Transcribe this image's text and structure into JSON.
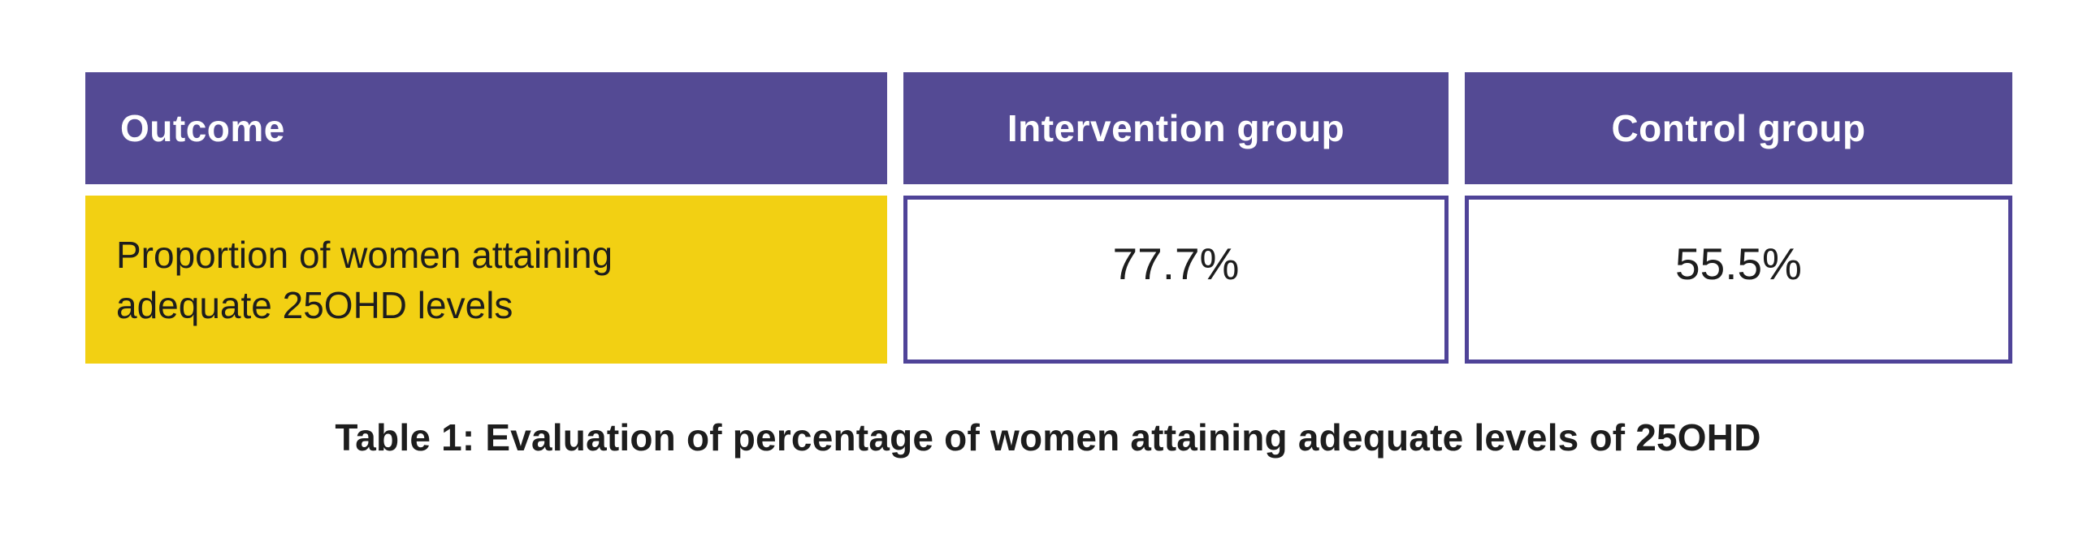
{
  "chart_data": {
    "type": "table",
    "title": "Table 1: Evaluation of percentage of women attaining adequate levels of 25OHD",
    "columns": [
      "Outcome",
      "Intervention group",
      "Control group"
    ],
    "rows": [
      [
        "Proportion of women attaining adequate 25OHD levels",
        "77.7%",
        "55.5%"
      ]
    ],
    "values": {
      "intervention_group_pct": 77.7,
      "control_group_pct": 55.5
    },
    "layout": {
      "header_position": "top",
      "caption_position": "below-table",
      "gridlines": "off",
      "cell_gaps": true
    }
  },
  "colors": {
    "header_bg": "#544a94",
    "header_text": "#ffffff",
    "row_highlight": "#f2d013",
    "cell_border": "#4f4398",
    "text_dark": "#1d1d1d",
    "page_bg": "#ffffff"
  }
}
